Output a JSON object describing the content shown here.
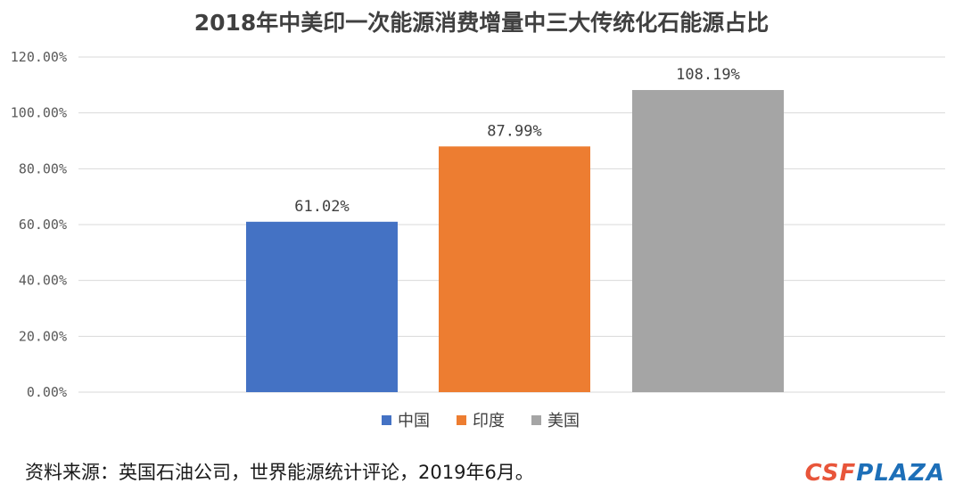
{
  "chart_data": {
    "type": "bar",
    "title": "2018年中美印一次能源消费增量中三大传统化石能源占比",
    "categories": [
      "中国",
      "印度",
      "美国"
    ],
    "values": [
      61.02,
      87.99,
      108.19
    ],
    "value_labels": [
      "61.02%",
      "87.99%",
      "108.19%"
    ],
    "colors": [
      "#4472c4",
      "#ed7d31",
      "#a5a5a5"
    ],
    "yticks": [
      "0.00%",
      "20.00%",
      "40.00%",
      "60.00%",
      "80.00%",
      "100.00%",
      "120.00%"
    ],
    "ylim": [
      0,
      120
    ],
    "grid": true,
    "legend": {
      "position": "bottom",
      "entries": [
        {
          "label": "中国",
          "color": "#4472c4"
        },
        {
          "label": "印度",
          "color": "#ed7d31"
        },
        {
          "label": "美国",
          "color": "#a5a5a5"
        }
      ]
    }
  },
  "source_note": "资料来源：英国石油公司，世界能源统计评论，2019年6月。",
  "logo": {
    "part_a": "CSF",
    "part_b": "PLAZA"
  }
}
